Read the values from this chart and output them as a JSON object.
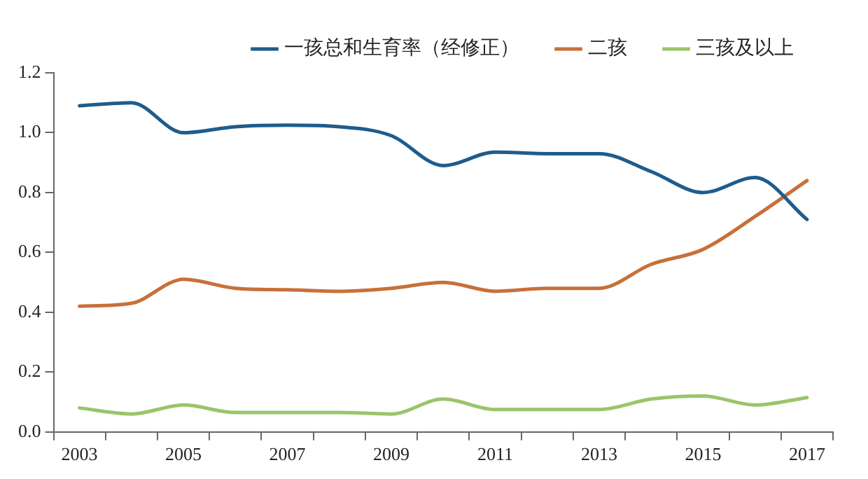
{
  "chart_data": {
    "type": "line",
    "categories": [
      "2003",
      null,
      "2005",
      null,
      "2007",
      null,
      "2009",
      null,
      "2011",
      null,
      "2013",
      null,
      "2015",
      null,
      "2017"
    ],
    "series": [
      {
        "name": "一孩总和生育率（经修正）",
        "color": "#1f5c8c",
        "values": [
          1.09,
          1.1,
          1.0,
          1.02,
          1.025,
          1.02,
          0.99,
          0.89,
          0.935,
          0.93,
          0.93,
          0.87,
          0.8,
          0.85,
          0.71
        ]
      },
      {
        "name": "二孩",
        "color": "#c8703a",
        "values": [
          0.42,
          0.43,
          0.51,
          0.48,
          0.475,
          0.47,
          0.48,
          0.5,
          0.47,
          0.48,
          0.48,
          0.56,
          0.61,
          0.72,
          0.84
        ]
      },
      {
        "name": "三孩及以上",
        "color": "#9bc46a",
        "values": [
          0.08,
          0.06,
          0.09,
          0.065,
          0.065,
          0.065,
          0.06,
          0.11,
          0.075,
          0.075,
          0.075,
          0.11,
          0.12,
          0.09,
          0.115
        ]
      }
    ],
    "ylim": [
      0,
      1.2
    ],
    "yticks": [
      {
        "value": 0,
        "label": "0.0"
      },
      {
        "value": 0.2,
        "label": "0.2"
      },
      {
        "value": 0.4,
        "label": "0.4"
      },
      {
        "value": 0.6,
        "label": "0.6"
      },
      {
        "value": 0.8,
        "label": "0.8"
      },
      {
        "value": 1.0,
        "label": "1.0"
      },
      {
        "value": 1.2,
        "label": "1.2"
      }
    ],
    "grid": false,
    "legend": "top",
    "marker": "none",
    "line_style": "solid"
  }
}
